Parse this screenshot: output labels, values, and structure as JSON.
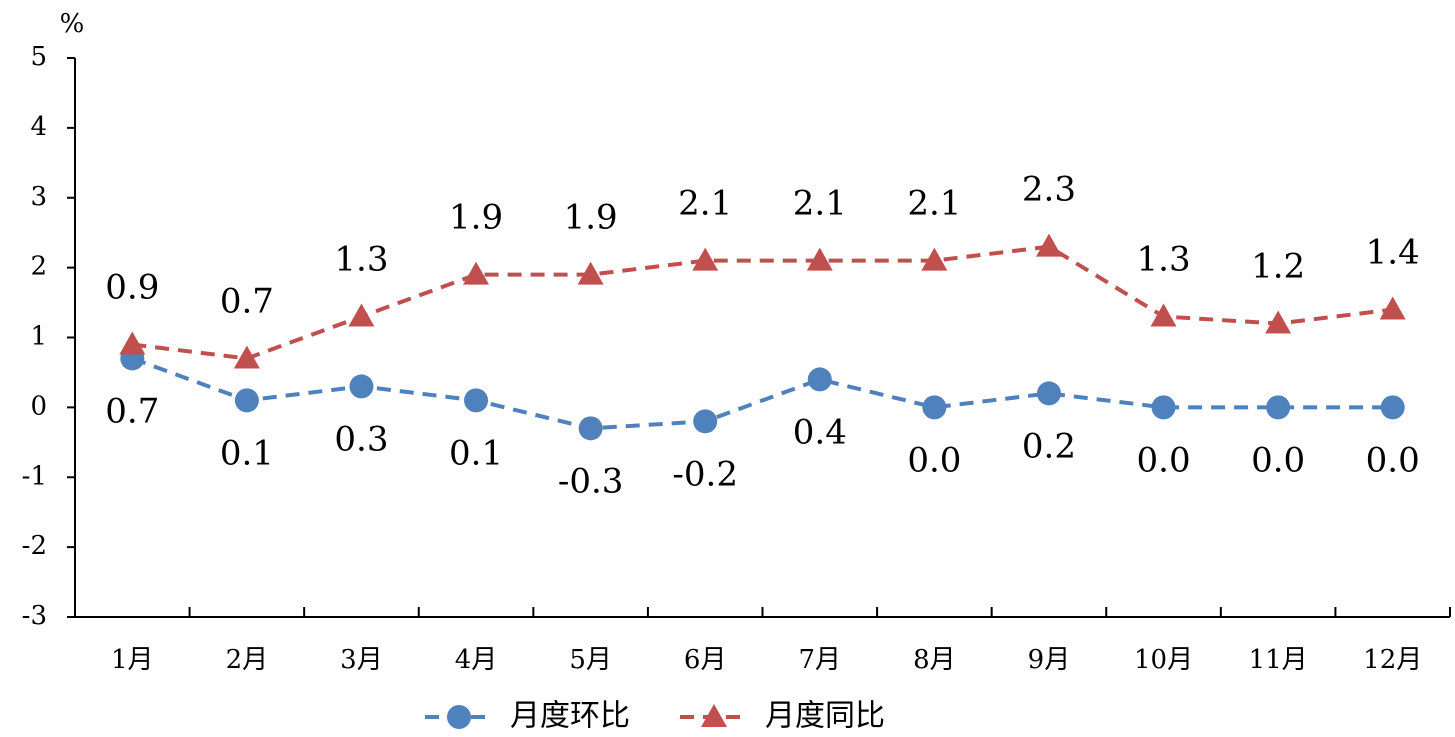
{
  "chart_data": {
    "type": "line",
    "y_label": "%",
    "categories": [
      "1月",
      "2月",
      "3月",
      "4月",
      "5月",
      "6月",
      "7月",
      "8月",
      "9月",
      "10月",
      "11月",
      "12月"
    ],
    "series": [
      {
        "name": "月度环比",
        "color": "#4f81bd",
        "marker": "circle",
        "values": [
          0.7,
          0.1,
          0.3,
          0.1,
          -0.3,
          -0.2,
          0.4,
          0.0,
          0.2,
          0.0,
          0.0,
          0.0
        ],
        "value_labels": [
          "0.7",
          "0.1",
          "0.3",
          "0.1",
          "-0.3",
          "-0.2",
          "0.4",
          "0.0",
          "0.2",
          "0.0",
          "0.0",
          "0.0"
        ]
      },
      {
        "name": "月度同比",
        "color": "#c0504d",
        "marker": "triangle",
        "values": [
          0.9,
          0.7,
          1.3,
          1.9,
          1.9,
          2.1,
          2.1,
          2.1,
          2.3,
          1.3,
          1.2,
          1.4
        ]
      }
    ],
    "ylim": [
      -3,
      5
    ],
    "yticks": [
      -3,
      -2,
      -1,
      0,
      1,
      2,
      3,
      4,
      5
    ],
    "grid": false,
    "legend": "bottom"
  }
}
